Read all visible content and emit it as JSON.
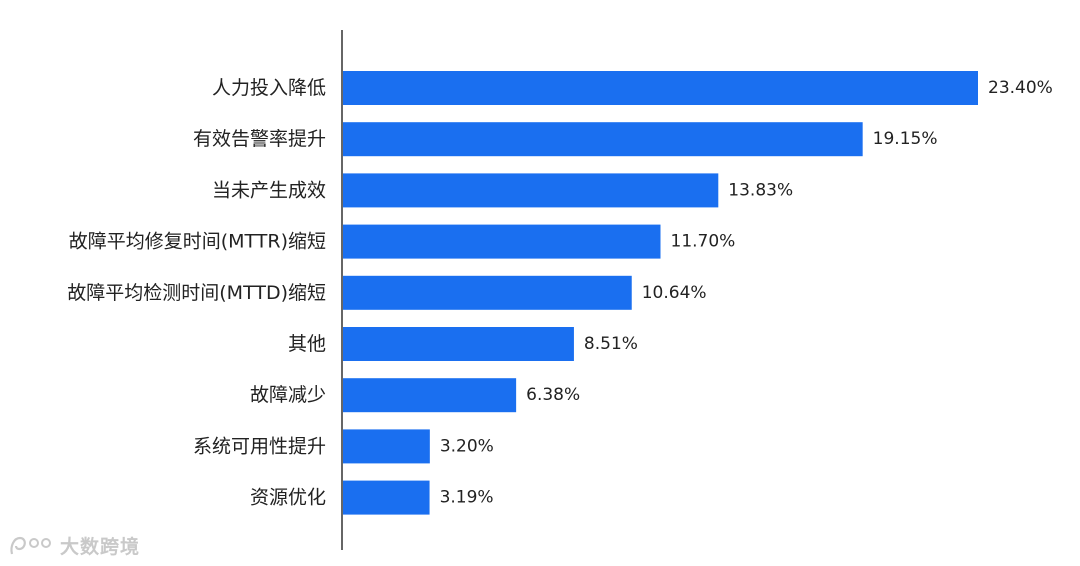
{
  "chart_data": {
    "type": "bar",
    "orientation": "horizontal",
    "categories": [
      "人力投入降低",
      "有效告警率提升",
      "当未产生成效",
      "故障平均修复时间(MTTR)缩短",
      "故障平均检测时间(MTTD)缩短",
      "其他",
      "故障减少",
      "系统可用性提升",
      "资源优化"
    ],
    "values": [
      23.4,
      19.15,
      13.83,
      11.7,
      10.64,
      8.51,
      6.38,
      3.2,
      3.19
    ],
    "value_labels": [
      "23.40%",
      "19.15%",
      "13.83%",
      "11.70%",
      "10.64%",
      "8.51%",
      "6.38%",
      "3.20%",
      "3.19%"
    ],
    "unit": "%",
    "title": "",
    "xlabel": "",
    "ylabel": "",
    "xlim": [
      0,
      23.4
    ],
    "grid": false,
    "legend": "none",
    "bar_color": "#1a6ff0",
    "axis_color": "#333333"
  },
  "watermark": {
    "text": "大数跨境",
    "icon": "dashuju-logo-icon"
  }
}
